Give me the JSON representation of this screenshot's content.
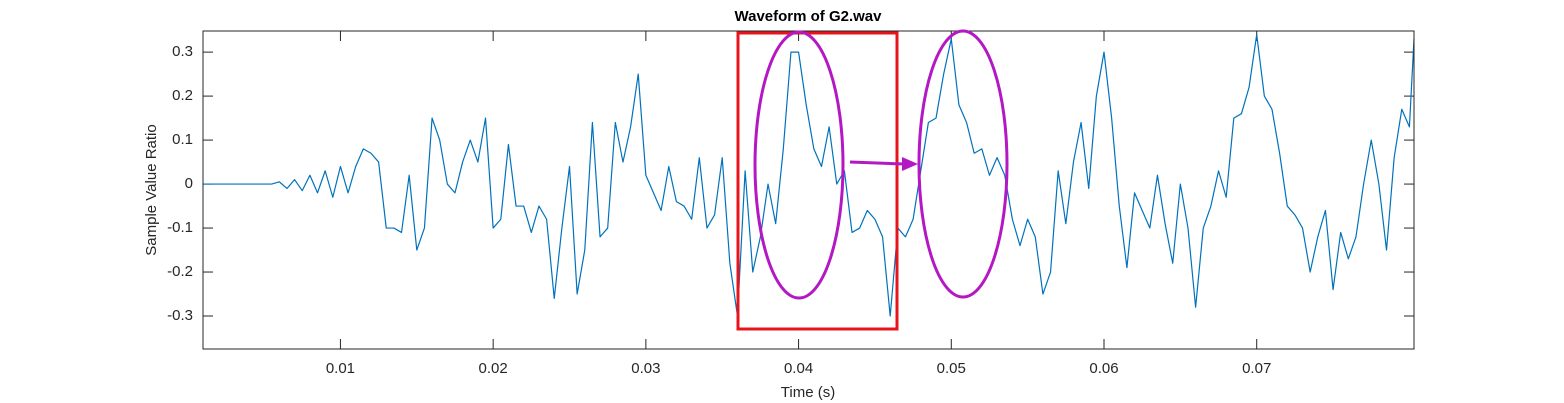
{
  "chart_data": {
    "type": "line",
    "title": "Waveform of G2.wav",
    "x_label": "Time (s)",
    "y_label": "Sample Value Ratio",
    "color": "#0072bd",
    "xlim": [
      0.001,
      0.0803
    ],
    "ylim": [
      -0.375,
      0.348
    ],
    "xticks": [
      0.01,
      0.02,
      0.03,
      0.04,
      0.05,
      0.06,
      0.07
    ],
    "yticks": [
      -0.3,
      -0.2,
      -0.1,
      0,
      0.1,
      0.2,
      0.3
    ],
    "grid": false,
    "x": [
      0.001,
      0.0015,
      0.002,
      0.0025,
      0.003,
      0.0035,
      0.004,
      0.0045,
      0.005,
      0.0055,
      0.006,
      0.0065,
      0.007,
      0.0075,
      0.008,
      0.0085,
      0.009,
      0.0095,
      0.01,
      0.0105,
      0.011,
      0.0115,
      0.012,
      0.0125,
      0.013,
      0.0135,
      0.014,
      0.0145,
      0.015,
      0.0155,
      0.016,
      0.0165,
      0.017,
      0.0175,
      0.018,
      0.0185,
      0.019,
      0.0195,
      0.02,
      0.0205,
      0.021,
      0.0215,
      0.022,
      0.0225,
      0.023,
      0.0235,
      0.024,
      0.0245,
      0.025,
      0.0255,
      0.026,
      0.0265,
      0.027,
      0.0275,
      0.028,
      0.0285,
      0.029,
      0.0295,
      0.03,
      0.0305,
      0.031,
      0.0315,
      0.032,
      0.0325,
      0.033,
      0.0335,
      0.034,
      0.0345,
      0.035,
      0.0355,
      0.036,
      0.0365,
      0.037,
      0.0375,
      0.038,
      0.0385,
      0.039,
      0.0395,
      0.04,
      0.0405,
      0.041,
      0.0415,
      0.042,
      0.0425,
      0.043,
      0.0435,
      0.044,
      0.0445,
      0.045,
      0.0455,
      0.046,
      0.0465,
      0.047,
      0.0475,
      0.048,
      0.0485,
      0.049,
      0.0495,
      0.05,
      0.0505,
      0.051,
      0.0515,
      0.052,
      0.0525,
      0.053,
      0.0535,
      0.054,
      0.0545,
      0.055,
      0.0555,
      0.056,
      0.0565,
      0.057,
      0.0575,
      0.058,
      0.0585,
      0.059,
      0.0595,
      0.06,
      0.0605,
      0.061,
      0.0615,
      0.062,
      0.0625,
      0.063,
      0.0635,
      0.064,
      0.0645,
      0.065,
      0.0655,
      0.066,
      0.0665,
      0.067,
      0.0675,
      0.068,
      0.0685,
      0.069,
      0.0695,
      0.07,
      0.0705,
      0.071,
      0.0715,
      0.072,
      0.0725,
      0.073,
      0.0735,
      0.074,
      0.0745,
      0.075,
      0.0755,
      0.076,
      0.0765,
      0.077,
      0.0775,
      0.078,
      0.0785,
      0.079,
      0.0795,
      0.08,
      0.0803
    ],
    "values": [
      0,
      0,
      0,
      0,
      0,
      0,
      0,
      0,
      0,
      0,
      0.005,
      -0.01,
      0.01,
      -0.015,
      0.02,
      -0.02,
      0.03,
      -0.03,
      0.04,
      -0.02,
      0.04,
      0.08,
      0.07,
      0.05,
      -0.1,
      -0.1,
      -0.11,
      0.02,
      -0.15,
      -0.1,
      0.15,
      0.1,
      0,
      -0.02,
      0.05,
      0.1,
      0.05,
      0.15,
      -0.1,
      -0.08,
      0.09,
      -0.05,
      -0.05,
      -0.11,
      -0.05,
      -0.08,
      -0.26,
      -0.1,
      0.04,
      -0.25,
      -0.15,
      0.14,
      -0.12,
      -0.1,
      0.14,
      0.05,
      0.13,
      0.25,
      0.02,
      -0.02,
      -0.06,
      0.04,
      -0.04,
      -0.05,
      -0.08,
      0.06,
      -0.1,
      -0.07,
      0.06,
      -0.18,
      -0.3,
      0.03,
      -0.2,
      -0.12,
      0,
      -0.09,
      0.08,
      0.3,
      0.3,
      0.18,
      0.08,
      0.04,
      0.13,
      0,
      0.03,
      -0.11,
      -0.1,
      -0.06,
      -0.08,
      -0.12,
      -0.3,
      -0.1,
      -0.12,
      -0.08,
      0.03,
      0.14,
      0.15,
      0.25,
      0.33,
      0.18,
      0.14,
      0.07,
      0.08,
      0.02,
      0.06,
      0.02,
      -0.08,
      -0.14,
      -0.08,
      -0.12,
      -0.25,
      -0.2,
      0.03,
      -0.09,
      0.05,
      0.14,
      -0.01,
      0.2,
      0.3,
      0.15,
      -0.05,
      -0.19,
      -0.02,
      -0.06,
      -0.1,
      0.02,
      -0.09,
      -0.18,
      0,
      -0.1,
      -0.28,
      -0.1,
      -0.05,
      0.03,
      -0.03,
      0.15,
      0.16,
      0.22,
      0.34,
      0.2,
      0.17,
      0.07,
      -0.05,
      -0.07,
      -0.1,
      -0.2,
      -0.12,
      -0.06,
      -0.24,
      -0.11,
      -0.17,
      -0.12,
      0,
      0.1,
      0,
      -0.15,
      0.06,
      0.17,
      0.13,
      0.33
    ]
  }
}
